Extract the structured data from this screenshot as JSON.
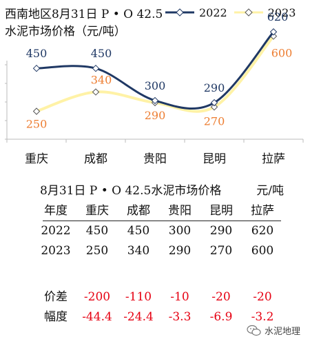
{
  "chart_data": {
    "type": "line",
    "title_line1": "西南地区8月31日  P • O 42.5",
    "title_line2": "水泥市场价格（元/吨）",
    "categories": [
      "重庆",
      "成都",
      "贵阳",
      "昆明",
      "拉萨"
    ],
    "series": [
      {
        "name": "2022",
        "values": [
          450,
          450,
          300,
          290,
          620
        ],
        "color": "#1f3864"
      },
      {
        "name": "2023",
        "values": [
          250,
          340,
          290,
          270,
          600
        ],
        "color": "#fff2a6",
        "label_color": "#ed7d31"
      }
    ],
    "ylim": [
      120,
      640
    ],
    "smooth": true,
    "legend_position": "top-right"
  },
  "table": {
    "title": "8月31日  P • O 42.5水泥市场价格",
    "unit": "元/吨",
    "header": [
      "年度",
      "重庆",
      "成都",
      "贵阳",
      "昆明",
      "拉萨"
    ],
    "rows": [
      {
        "label": "2022",
        "values": [
          "450",
          "450",
          "300",
          "290",
          "620"
        ]
      },
      {
        "label": "2023",
        "values": [
          "250",
          "340",
          "290",
          "270",
          "600"
        ]
      }
    ],
    "diff_rows": [
      {
        "label": "价差",
        "values": [
          "-200",
          "-110",
          "-10",
          "-20",
          "-20"
        ]
      },
      {
        "label": "幅度",
        "values": [
          "-44.4",
          "-24.4",
          "-3.3",
          "-6.9",
          "-3.2"
        ]
      }
    ]
  },
  "watermark": "水泥地理"
}
